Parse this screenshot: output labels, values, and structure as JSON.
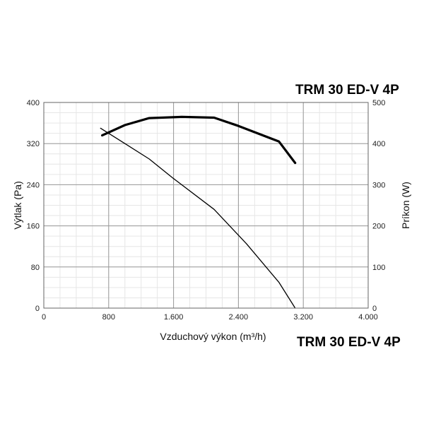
{
  "chart_data": {
    "type": "line",
    "title": "TRM 30 ED-V 4P",
    "xlabel": "Vzduchový výkon (m³/h)",
    "ylabel_left": "Výtlak (Pa)",
    "ylabel_right": "Príkon (W)",
    "xlim": [
      0,
      4000
    ],
    "ylim_left": [
      0,
      400
    ],
    "ylim_right": [
      0,
      500
    ],
    "x_ticks": [
      "0",
      "800",
      "1.600",
      "2.400",
      "3.200",
      "4.000"
    ],
    "y_left_ticks": [
      "0",
      "80",
      "160",
      "240",
      "320",
      "400"
    ],
    "y_right_ticks": [
      "0",
      "100",
      "200",
      "300",
      "400",
      "500"
    ],
    "grid": true,
    "series": [
      {
        "axis": "left",
        "style": "thin",
        "x": [
          700,
          1000,
          1300,
          1600,
          2100,
          2500,
          2900,
          3100
        ],
        "y": [
          350,
          320,
          290,
          252,
          192,
          125,
          50,
          0
        ]
      },
      {
        "axis": "right",
        "style": "bold",
        "x": [
          720,
          1000,
          1300,
          1700,
          2100,
          2400,
          2900,
          3100
        ],
        "y": [
          420,
          445,
          462,
          465,
          463,
          443,
          405,
          353
        ]
      }
    ],
    "clipped_title": "TRM 30 ED-V 4P"
  }
}
